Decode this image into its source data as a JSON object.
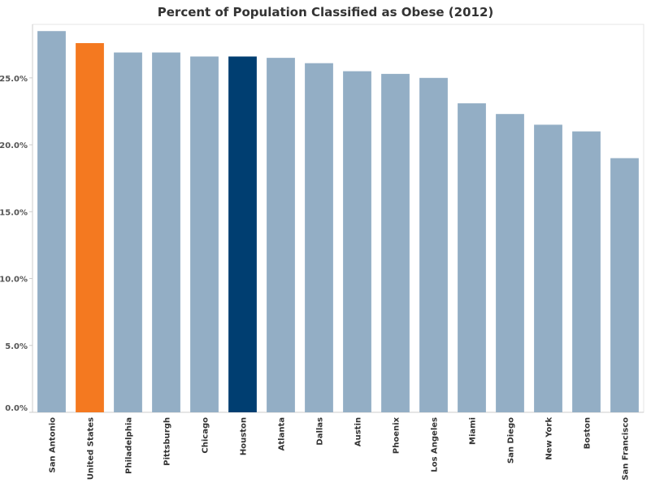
{
  "chart_data": {
    "type": "bar",
    "title": "Percent of Population Classified as Obese (2012)",
    "xlabel": "",
    "ylabel": "",
    "ylim": [
      0,
      29
    ],
    "yticks": [
      0,
      5,
      10,
      15,
      20,
      25
    ],
    "ytick_labels": [
      "0.0%",
      "5.0%",
      "10.0%",
      "15.0%",
      "20.0%",
      "25.0%"
    ],
    "grid": false,
    "categories": [
      "San Antonio",
      "United States",
      "Philadelphia",
      "Pittsburgh",
      "Chicago",
      "Houston",
      "Atlanta",
      "Dallas",
      "Austin",
      "Phoenix",
      "Los Angeles",
      "Miami",
      "San Diego",
      "New York",
      "Boston",
      "San Francisco"
    ],
    "values": [
      28.5,
      27.6,
      26.9,
      26.9,
      26.6,
      26.6,
      26.5,
      26.1,
      25.5,
      25.3,
      25.0,
      23.1,
      22.3,
      21.5,
      21.0,
      19.0
    ],
    "colors": {
      "default": "#93aec5",
      "United States": "#f47920",
      "Houston": "#003e71"
    }
  }
}
